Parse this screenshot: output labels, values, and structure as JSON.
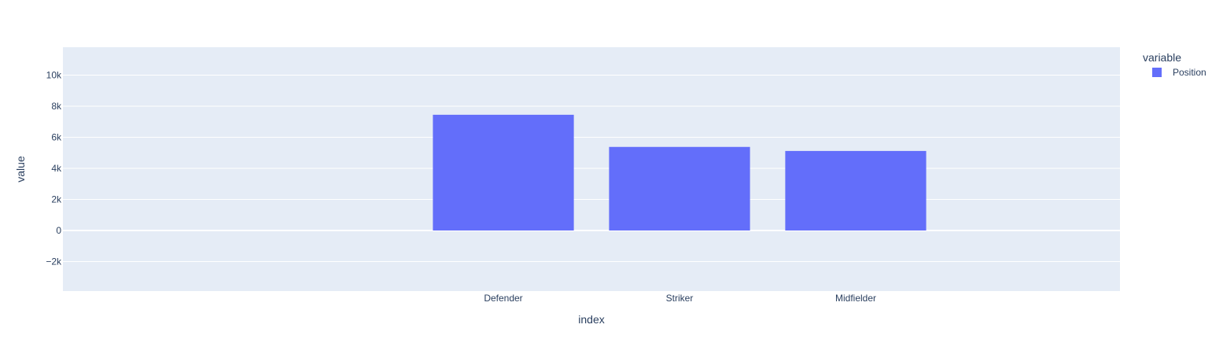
{
  "chart_data": {
    "type": "bar",
    "categories": [
      "Defender",
      "Striker",
      "Midfielder"
    ],
    "series": [
      {
        "name": "Position",
        "values": [
          7450,
          5380,
          5120
        ]
      }
    ],
    "xlabel": "index",
    "ylabel": "value",
    "ylim": [
      -3900,
      11800
    ],
    "yticks": [
      -2000,
      0,
      2000,
      4000,
      6000,
      8000,
      10000
    ],
    "ytick_labels": [
      "−2k",
      "0",
      "2k",
      "4k",
      "6k",
      "8k",
      "10k"
    ],
    "xlim": [
      -2.5,
      3.5
    ],
    "grid": true,
    "legend": {
      "title": "variable",
      "placement": "top-right"
    },
    "colors": {
      "plot_bg": "#e5ecf6",
      "grid": "#ffffff",
      "bar": "#636efa",
      "text": "#2a3f5f"
    }
  }
}
